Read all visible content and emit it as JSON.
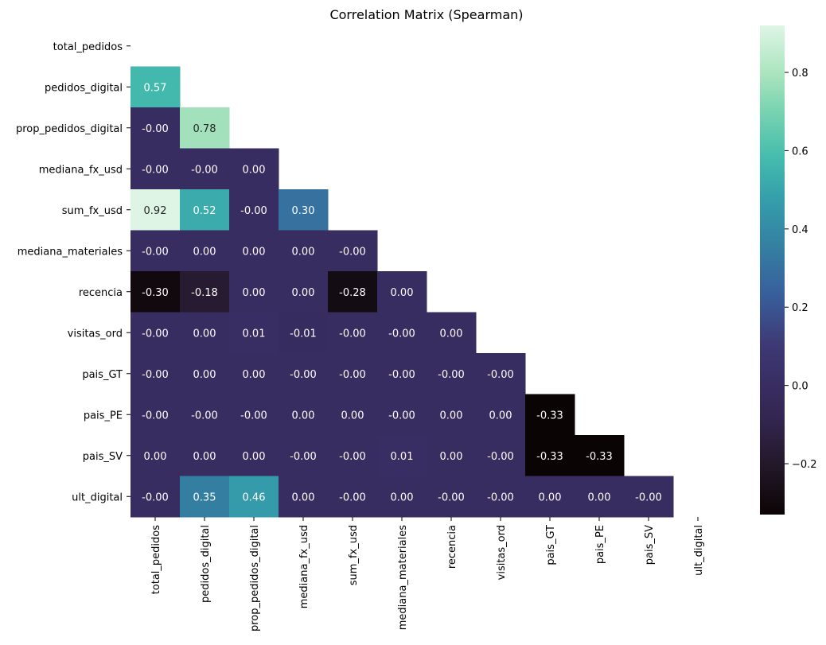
{
  "chart_data": {
    "type": "heatmap",
    "title": "Correlation Matrix (Spearman)",
    "xlabel": "",
    "ylabel": "",
    "labels": [
      "total_pedidos",
      "pedidos_digital",
      "prop_pedidos_digital",
      "mediana_fx_usd",
      "sum_fx_usd",
      "mediana_materiales",
      "recencia",
      "visitas_ord",
      "pais_GT",
      "pais_PE",
      "pais_SV",
      "ult_digital"
    ],
    "mask": "upper triangle including diagonal",
    "rows": [
      [],
      [
        "0.57"
      ],
      [
        "-0.00",
        "0.78"
      ],
      [
        "-0.00",
        "-0.00",
        "0.00"
      ],
      [
        "0.92",
        "0.52",
        "-0.00",
        "0.30"
      ],
      [
        "-0.00",
        "0.00",
        "0.00",
        "0.00",
        "-0.00"
      ],
      [
        "-0.30",
        "-0.18",
        "0.00",
        "0.00",
        "-0.28",
        "0.00"
      ],
      [
        "-0.00",
        "0.00",
        "0.01",
        "-0.01",
        "-0.00",
        "-0.00",
        "0.00"
      ],
      [
        "-0.00",
        "0.00",
        "0.00",
        "-0.00",
        "-0.00",
        "-0.00",
        "-0.00",
        "-0.00"
      ],
      [
        "-0.00",
        "-0.00",
        "-0.00",
        "0.00",
        "0.00",
        "-0.00",
        "0.00",
        "0.00",
        "-0.33"
      ],
      [
        "0.00",
        "0.00",
        "0.00",
        "-0.00",
        "-0.00",
        "0.01",
        "0.00",
        "-0.00",
        "-0.33",
        "-0.33"
      ],
      [
        "-0.00",
        "0.35",
        "0.46",
        "0.00",
        "-0.00",
        "0.00",
        "-0.00",
        "-0.00",
        "0.00",
        "0.00",
        "-0.00"
      ]
    ],
    "colorbar": {
      "vmin": -0.33,
      "vmax": 0.92,
      "ticks": [
        -0.2,
        0.0,
        0.2,
        0.4,
        0.6,
        0.8
      ],
      "tick_labels": [
        "−0.2",
        "0.0",
        "0.2",
        "0.4",
        "0.6",
        "0.8"
      ],
      "colormap": "mako"
    }
  }
}
